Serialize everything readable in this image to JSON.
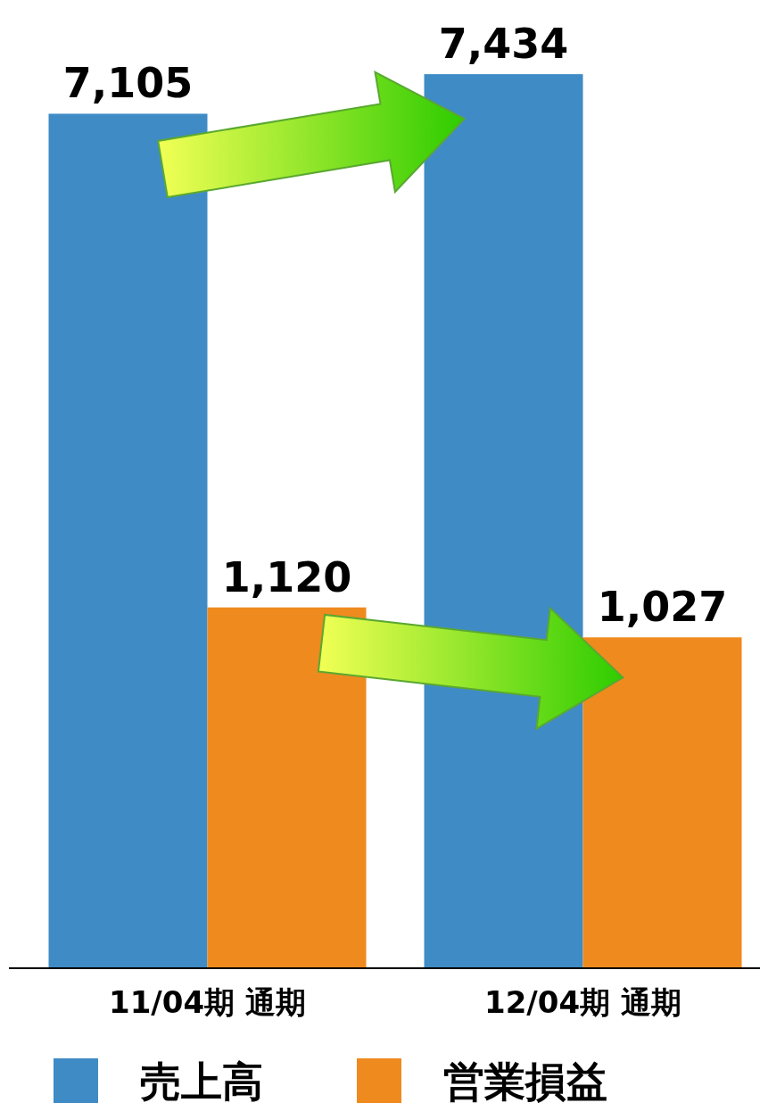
{
  "chart_data": {
    "type": "bar",
    "categories": [
      "11/04期 通期",
      "12/04期 通期"
    ],
    "series": [
      {
        "name": "売上高",
        "color": "#3f8bc6",
        "values": [
          7105,
          7434
        ],
        "value_labels": [
          "7,105",
          "7,434"
        ]
      },
      {
        "name": "営業損益",
        "color": "#ef8a1f",
        "values": [
          1120,
          1027
        ],
        "axis": "y2",
        "value_labels": [
          "1,120",
          "1,027"
        ]
      }
    ],
    "legend": "bottom"
  }
}
